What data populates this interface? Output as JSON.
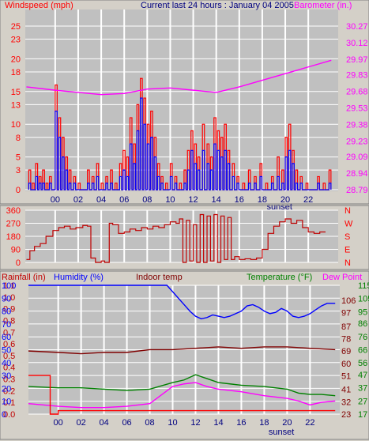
{
  "colors": {
    "background": "#d4d0c8",
    "plot_background": "#c0c0c0",
    "grid": "#ffffff",
    "red": "#ff0000",
    "darkred": "#c00000",
    "blue": "#0000ff",
    "magenta": "#ff00ff",
    "green": "#008000",
    "maroon": "#800000"
  },
  "header": {
    "windspeed_label": "Windspeed (mph)",
    "title": "Current last 24 hours : January 04 2005",
    "barometer_label": "Barometer (in.)"
  },
  "bottom_header": {
    "rainfall_label": "Rainfall (in)",
    "humidity_label": "Humidity (%)",
    "indoor_label": "Indoor temp",
    "temperature_label": "Temperature (°F)",
    "dewpoint_label": "Dew Point"
  },
  "sunset_label": "sunset",
  "x_axis": {
    "range": [
      -2.6,
      24.6
    ],
    "hour_ticks": [
      0,
      2,
      4,
      6,
      8,
      10,
      12,
      14,
      16,
      18,
      20,
      22
    ],
    "tick_labels": [
      "00",
      "02",
      "04",
      "06",
      "08",
      "10",
      "12",
      "14",
      "16",
      "18",
      "20",
      "22"
    ],
    "sunset_hour": 19.5
  },
  "chart_data": [
    {
      "type": "line",
      "title": "Current last 24 hours : January 04 2005",
      "x_unit": "hour of day",
      "grid": true,
      "left_axis": {
        "label": "Windspeed (mph)",
        "range": [
          0,
          25
        ],
        "ticks": [
          0,
          3,
          5,
          8,
          10,
          13,
          15,
          18,
          20,
          23,
          25
        ]
      },
      "right_axis": {
        "label": "Barometer (in.)",
        "range": [
          28.79,
          30.27
        ],
        "ticks": [
          28.79,
          28.94,
          29.09,
          29.23,
          29.38,
          29.53,
          29.68,
          29.83,
          29.97,
          30.12,
          30.27
        ]
      },
      "series": [
        {
          "name": "Windspeed (mph)",
          "axis": "left",
          "color": "#ff0000",
          "x": [
            -2.3,
            -2.0,
            -1.7,
            -1.4,
            -1.1,
            -0.8,
            -0.5,
            0.0,
            0.3,
            0.6,
            0.9,
            1.2,
            1.6,
            2.0,
            2.4,
            2.8,
            3.2,
            3.6,
            4.0,
            4.4,
            4.8,
            5.2,
            5.6,
            5.9,
            6.2,
            6.5,
            6.8,
            7.1,
            7.4,
            7.7,
            8.0,
            8.3,
            8.6,
            8.9,
            9.2,
            9.6,
            10.0,
            10.4,
            10.8,
            11.2,
            11.5,
            11.8,
            12.1,
            12.4,
            12.8,
            13.2,
            13.5,
            13.8,
            14.1,
            14.4,
            14.7,
            15.0,
            15.4,
            15.8,
            16.3,
            16.8,
            17.3,
            17.8,
            18.3,
            18.8,
            19.3,
            19.7,
            20.0,
            20.3,
            20.6,
            20.9,
            21.3,
            21.8,
            22.3,
            22.8,
            23.3,
            23.8
          ],
          "values": [
            3,
            1,
            4,
            2,
            3,
            1,
            2,
            16,
            11,
            8,
            5,
            3,
            2,
            1,
            0,
            3,
            2,
            4,
            1,
            2,
            3,
            1,
            4,
            6,
            5,
            11,
            7,
            13,
            17,
            14,
            10,
            12,
            8,
            4,
            2,
            1,
            4,
            2,
            1,
            3,
            6,
            9,
            7,
            5,
            10,
            7,
            5,
            11,
            9,
            8,
            10,
            6,
            4,
            2,
            1,
            3,
            2,
            4,
            1,
            2,
            5,
            3,
            8,
            10,
            6,
            3,
            2,
            1,
            0,
            2,
            1,
            3
          ]
        },
        {
          "name": "Wind gust (mph)",
          "axis": "left",
          "color": "#0000ff",
          "x": [
            -2.3,
            -2.0,
            -1.7,
            -1.4,
            -1.1,
            -0.8,
            -0.5,
            0.0,
            0.3,
            0.6,
            0.9,
            1.2,
            1.6,
            2.0,
            2.4,
            2.8,
            3.2,
            3.6,
            4.0,
            4.4,
            4.8,
            5.2,
            5.6,
            5.9,
            6.2,
            6.5,
            6.8,
            7.1,
            7.4,
            7.7,
            8.0,
            8.3,
            8.6,
            8.9,
            9.2,
            9.6,
            10.0,
            10.4,
            10.8,
            11.2,
            11.5,
            11.8,
            12.1,
            12.4,
            12.8,
            13.2,
            13.5,
            13.8,
            14.1,
            14.4,
            14.7,
            15.0,
            15.4,
            15.8,
            16.3,
            16.8,
            17.3,
            17.8,
            18.3,
            18.8,
            19.3,
            19.7,
            20.0,
            20.3,
            20.6,
            20.9,
            21.3,
            21.8,
            22.3,
            22.8,
            23.3,
            23.8
          ],
          "values": [
            1,
            0,
            2,
            1,
            1,
            0,
            1,
            12,
            8,
            5,
            3,
            1,
            1,
            0,
            0,
            1,
            1,
            2,
            0,
            1,
            1,
            0,
            2,
            3,
            2,
            7,
            4,
            9,
            14,
            10,
            7,
            8,
            5,
            2,
            1,
            0,
            2,
            1,
            0,
            1,
            3,
            6,
            4,
            3,
            6,
            4,
            3,
            7,
            6,
            5,
            6,
            4,
            2,
            1,
            0,
            1,
            1,
            2,
            0,
            1,
            2,
            1,
            5,
            6,
            4,
            1,
            1,
            0,
            0,
            1,
            0,
            1
          ]
        },
        {
          "name": "Barometer (in.)",
          "axis": "right",
          "color": "#ff00ff",
          "x": [
            -2.5,
            0,
            2,
            4,
            6,
            8,
            10,
            12,
            14,
            16,
            18,
            20,
            22,
            24
          ],
          "values": [
            29.72,
            29.69,
            29.67,
            29.65,
            29.66,
            29.7,
            29.71,
            29.69,
            29.67,
            29.72,
            29.78,
            29.84,
            29.9,
            29.96
          ]
        }
      ]
    },
    {
      "type": "line",
      "grid": true,
      "x_unit": "hour of day",
      "left_axis": {
        "range": [
          0,
          360
        ],
        "ticks": [
          0,
          90,
          180,
          270,
          360
        ]
      },
      "right_axis_ticks": [
        "N",
        "W",
        "S",
        "E",
        "N"
      ],
      "series": [
        {
          "name": "Wind direction",
          "color": "#c00000",
          "x": [
            -2.5,
            -2.2,
            -1.8,
            -1.3,
            -0.8,
            -0.2,
            0.3,
            0.8,
            1.3,
            1.8,
            2.4,
            2.8,
            3.1,
            3.5,
            4.0,
            4.3,
            4.7,
            5.0,
            5.5,
            6.0,
            6.5,
            7.0,
            7.5,
            8.0,
            8.5,
            9.0,
            9.5,
            10.0,
            10.5,
            10.8,
            11.1,
            11.4,
            11.7,
            12.0,
            12.3,
            12.6,
            12.9,
            13.2,
            13.5,
            13.8,
            14.1,
            14.4,
            14.7,
            15.0,
            15.3,
            15.6,
            16.0,
            16.5,
            17.0,
            17.5,
            18.0,
            18.5,
            19.0,
            19.5,
            20.0,
            20.5,
            21.0,
            21.5,
            22.0,
            22.5,
            23.0,
            23.5
          ],
          "values": [
            20,
            80,
            110,
            130,
            180,
            220,
            240,
            250,
            230,
            240,
            255,
            250,
            30,
            0,
            10,
            0,
            270,
            260,
            200,
            210,
            230,
            220,
            240,
            230,
            250,
            240,
            260,
            280,
            270,
            300,
            0,
            290,
            10,
            260,
            0,
            330,
            0,
            320,
            10,
            330,
            0,
            320,
            20,
            310,
            20,
            40,
            20,
            25,
            20,
            30,
            90,
            200,
            250,
            280,
            300,
            270,
            290,
            240,
            210,
            200,
            210,
            210
          ]
        }
      ]
    },
    {
      "type": "line",
      "grid": true,
      "x_unit": "hour of day",
      "left_axis_humidity": {
        "label": "Humidity (%)",
        "range": [
          0,
          100
        ],
        "ticks": [
          0,
          10,
          20,
          30,
          40,
          50,
          60,
          70,
          80,
          90,
          100
        ]
      },
      "left_axis_rainfall": {
        "label": "Rainfall (in)",
        "range": [
          0,
          1.1
        ],
        "ticks": [
          0.0,
          0.1,
          0.2,
          0.3,
          0.4,
          0.5,
          0.6,
          0.7,
          0.8,
          0.9,
          1.0,
          1.1
        ]
      },
      "right_axis_temperature": {
        "label": "Temperature (°F)",
        "range": [
          17,
          115
        ],
        "ticks": [
          17,
          27,
          37,
          47,
          56,
          66,
          76,
          86,
          95,
          105,
          115
        ]
      },
      "right_axis_indoor": {
        "label": "Indoor temp",
        "range": [
          23,
          114
        ],
        "ticks": [
          23,
          32,
          41,
          51,
          60,
          69,
          78,
          87,
          97,
          106
        ]
      },
      "series": [
        {
          "name": "Humidity (%)",
          "axis": "humidity",
          "color": "#0000ff",
          "x": [
            -2.6,
            0,
            2,
            4,
            6,
            8,
            9.5,
            10,
            10.5,
            11,
            11.5,
            12,
            12.5,
            13,
            13.5,
            14,
            14.5,
            15,
            16,
            16.5,
            17,
            17.5,
            18,
            18.5,
            19,
            19.5,
            20,
            20.5,
            21,
            21.5,
            22,
            22.5,
            23,
            23.5,
            24.2
          ],
          "values": [
            100,
            100,
            100,
            100,
            100,
            100,
            100,
            95,
            90,
            85,
            80,
            76,
            74,
            75,
            77,
            76,
            75,
            76,
            80,
            84,
            85,
            83,
            80,
            78,
            79,
            82,
            80,
            76,
            75,
            76,
            78,
            81,
            84,
            86,
            86
          ]
        },
        {
          "name": "Indoor temp",
          "axis": "indoor",
          "color": "#800000",
          "x": [
            -2.6,
            0,
            2,
            4,
            6,
            8,
            10,
            12,
            14,
            16,
            18,
            20,
            22,
            24.2
          ],
          "values": [
            69,
            68,
            67,
            68,
            68,
            70,
            70,
            71,
            72,
            71,
            72,
            72,
            71,
            70
          ]
        },
        {
          "name": "Temperature (°F)",
          "axis": "temperature",
          "color": "#008000",
          "x": [
            -2.6,
            0,
            2,
            4,
            6,
            8,
            10,
            11,
            12,
            13,
            14,
            15,
            16,
            18,
            20,
            21,
            22,
            23,
            24.2
          ],
          "values": [
            38,
            37,
            37,
            36,
            35,
            36,
            41,
            43,
            47,
            44,
            41,
            40,
            39,
            38,
            36,
            33,
            32,
            32,
            31
          ]
        },
        {
          "name": "Dew Point",
          "axis": "temperature",
          "color": "#ff00ff",
          "x": [
            -2.6,
            0,
            2,
            4,
            6,
            8,
            10,
            11,
            12,
            13,
            14,
            15,
            16,
            18,
            20,
            21,
            22,
            23,
            24.2
          ],
          "values": [
            25,
            23,
            22,
            22,
            23,
            25,
            38,
            40,
            41,
            38,
            36,
            35,
            34,
            31,
            29,
            27,
            24,
            26,
            27
          ]
        },
        {
          "name": "Rainfall (in)",
          "axis": "rainfall",
          "color": "#ff0000",
          "x": [
            -2.6,
            -0.7,
            -0.7,
            0.0,
            0.0,
            24.2
          ],
          "values": [
            0.33,
            0.33,
            0.0,
            0.0,
            0.03,
            0.03
          ]
        }
      ]
    }
  ]
}
